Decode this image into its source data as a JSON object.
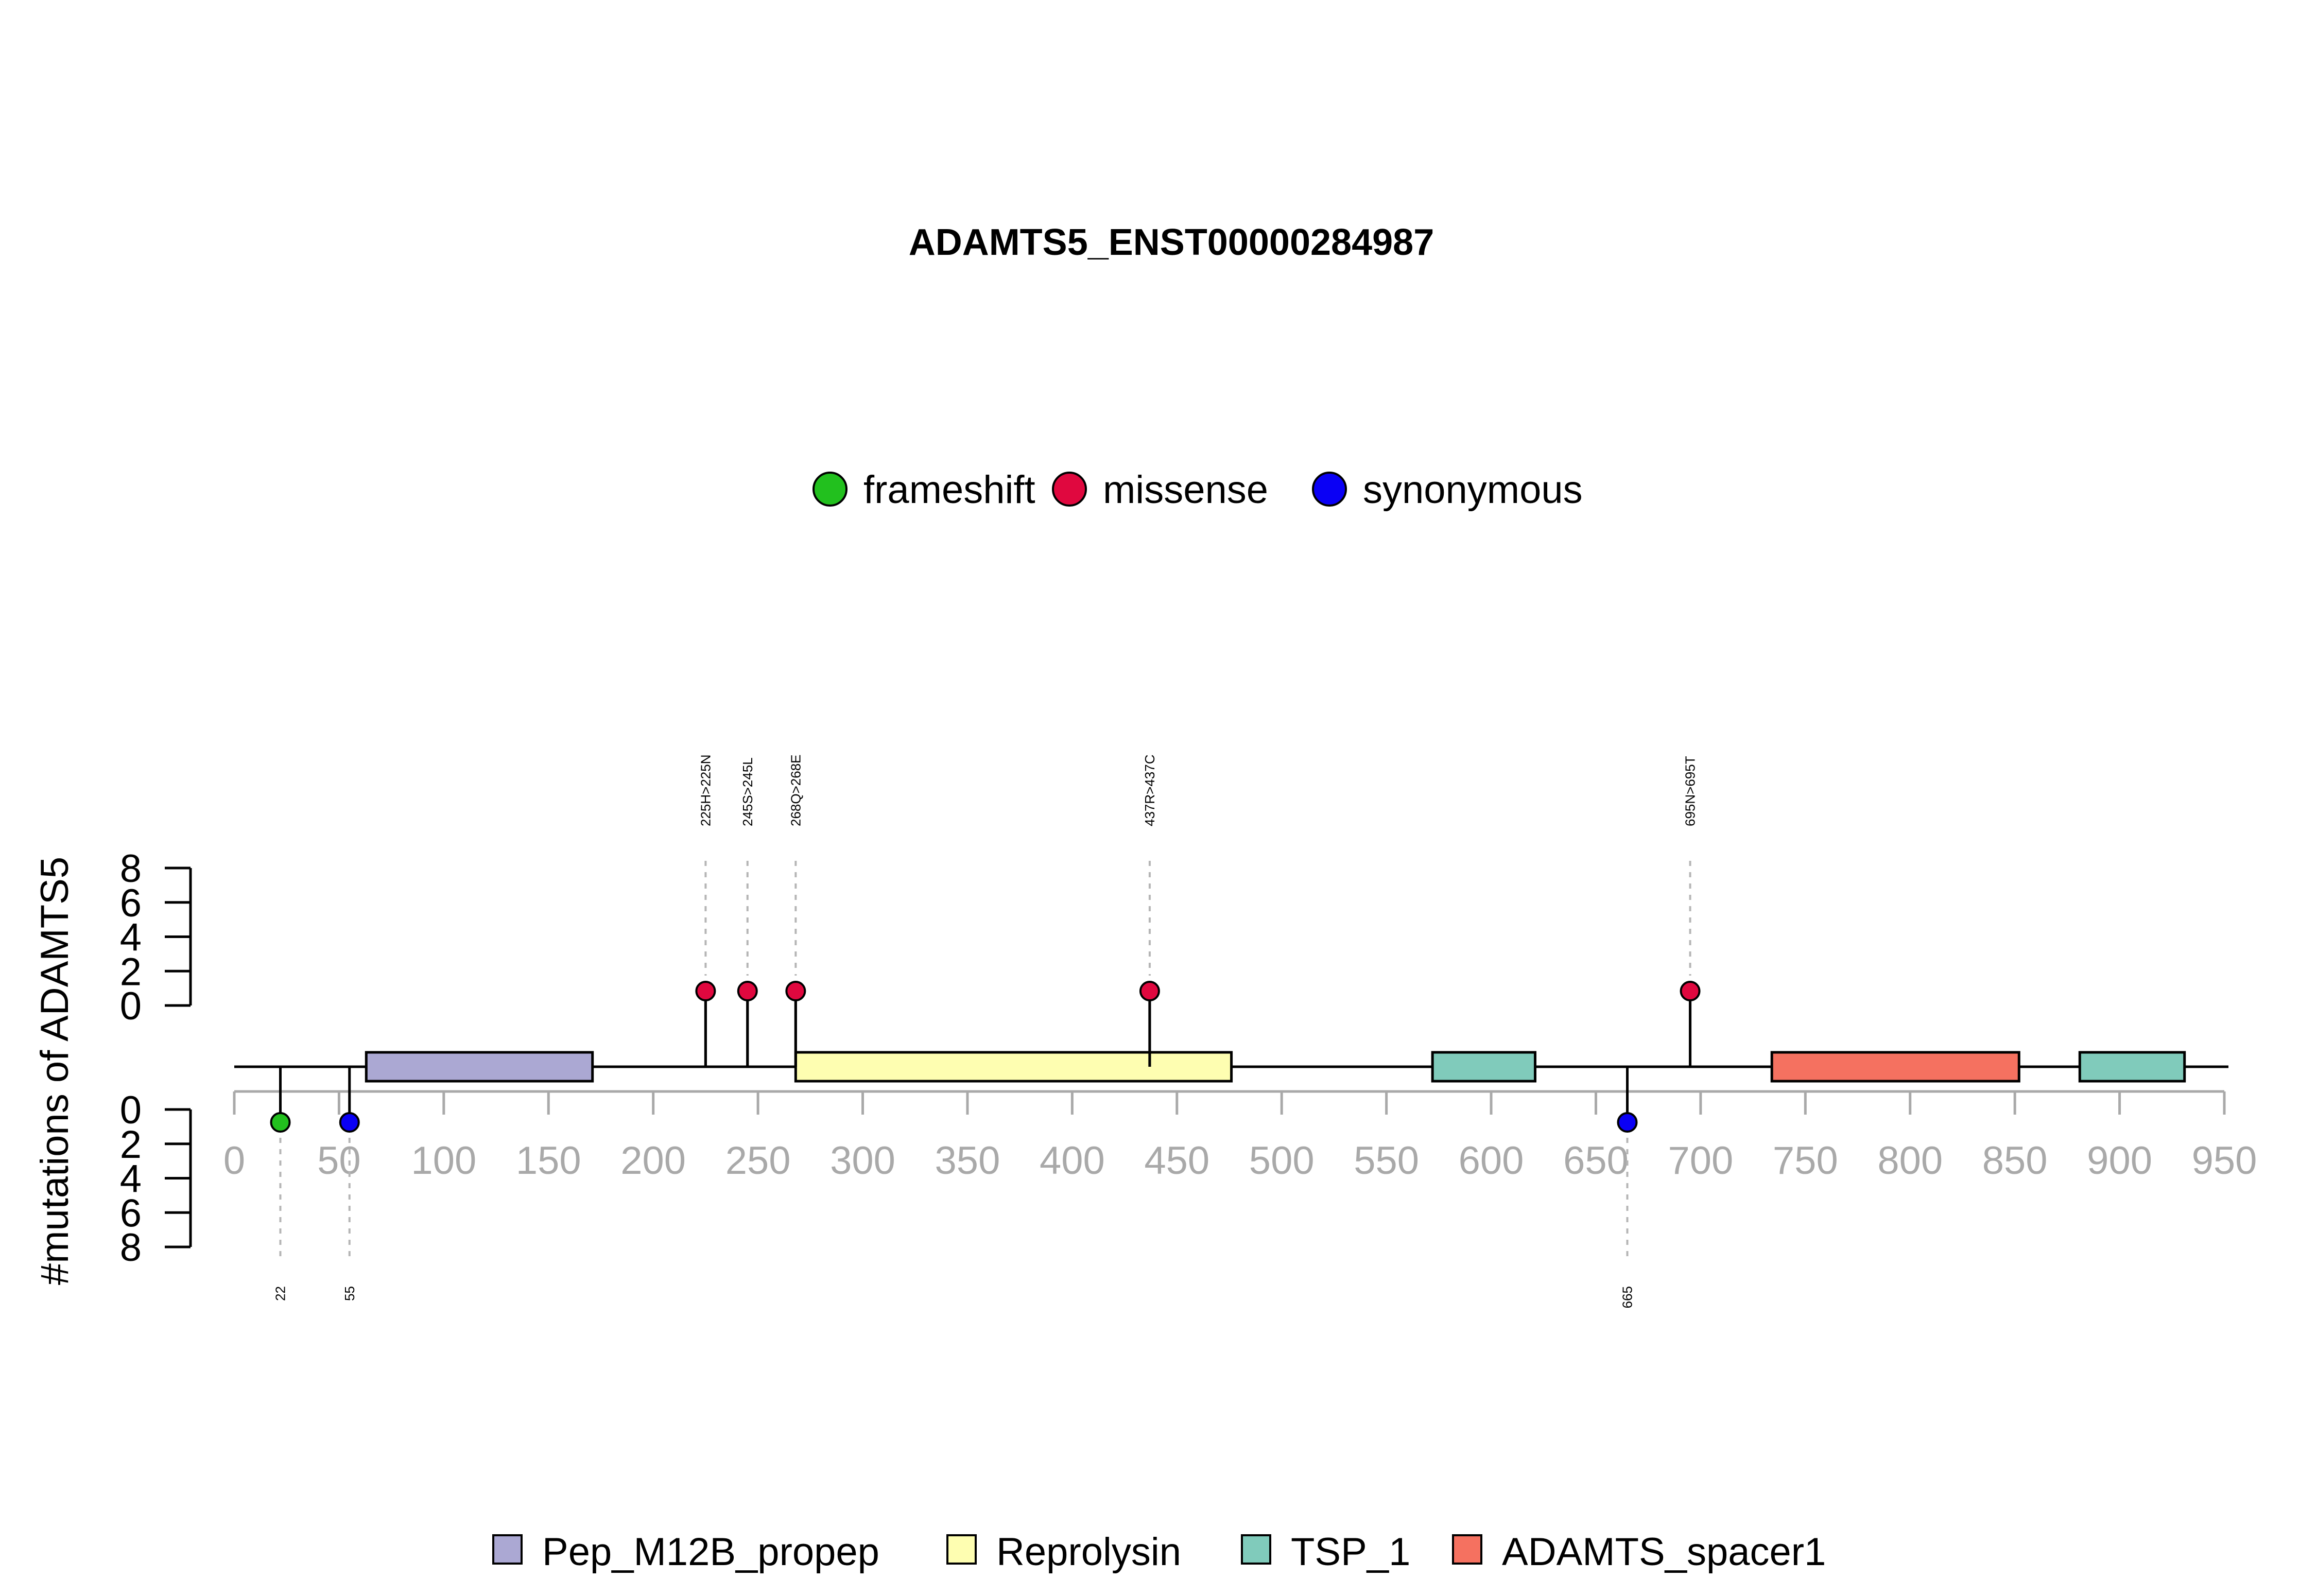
{
  "chart_data": {
    "type": "lollipop",
    "title": "ADAMTS5_ENST00000284987",
    "ylabel": "#mutations of ADAMTS5",
    "xlim": [
      0,
      950
    ],
    "x_ticks": [
      0,
      50,
      100,
      150,
      200,
      250,
      300,
      350,
      400,
      450,
      500,
      550,
      600,
      650,
      700,
      750,
      800,
      850,
      900,
      950
    ],
    "y_ticks_top": [
      0,
      2,
      4,
      6,
      8
    ],
    "y_ticks_bottom": [
      0,
      2,
      4,
      6,
      8
    ],
    "ylim": [
      0,
      8
    ],
    "mutation_legend": [
      {
        "name": "frameshift",
        "color": "#22c01e"
      },
      {
        "name": "missense",
        "color": "#e0083f"
      },
      {
        "name": "synonymous",
        "color": "#0a00f5"
      }
    ],
    "domain_legend": [
      {
        "name": "Pep_M12B_propep",
        "color": "#aba8d3"
      },
      {
        "name": "Reprolysin",
        "color": "#fefeb1"
      },
      {
        "name": "TSP_1",
        "color": "#80cbbb"
      },
      {
        "name": "ADAMTS_spacer1",
        "color": "#f57160"
      }
    ],
    "domains": [
      {
        "name": "Pep_M12B_propep",
        "start": 63,
        "end": 171
      },
      {
        "name": "Reprolysin",
        "start": 268,
        "end": 476
      },
      {
        "name": "TSP_1",
        "start": 572,
        "end": 621
      },
      {
        "name": "ADAMTS_spacer1",
        "start": 734,
        "end": 852
      },
      {
        "name": "TSP_1",
        "start": 881,
        "end": 931
      }
    ],
    "mutations_top": [
      {
        "position": 225,
        "label": "225H>225N",
        "type": "missense",
        "count": 1
      },
      {
        "position": 245,
        "label": "245S>245L",
        "type": "missense",
        "count": 1
      },
      {
        "position": 268,
        "label": "268Q>268E",
        "type": "missense",
        "count": 1
      },
      {
        "position": 437,
        "label": "437R>437C",
        "type": "missense",
        "count": 1
      },
      {
        "position": 695,
        "label": "695N>695T",
        "type": "missense",
        "count": 1
      }
    ],
    "mutations_bottom": [
      {
        "position": 22,
        "label": "22",
        "type": "frameshift",
        "count": 1
      },
      {
        "position": 55,
        "label": "55",
        "type": "synonymous",
        "count": 1
      },
      {
        "position": 665,
        "label": "665",
        "type": "synonymous",
        "count": 1
      }
    ]
  }
}
